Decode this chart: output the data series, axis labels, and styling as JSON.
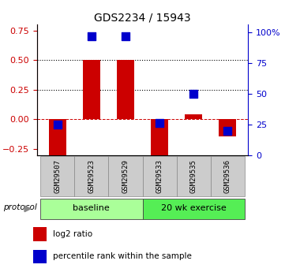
{
  "title": "GDS2234 / 15943",
  "samples": [
    "GSM29507",
    "GSM29523",
    "GSM29529",
    "GSM29533",
    "GSM29535",
    "GSM29536"
  ],
  "log2_ratio": [
    -0.3,
    0.5,
    0.5,
    -0.3,
    0.04,
    -0.14
  ],
  "percentile_rank": [
    25,
    97,
    97,
    26,
    50,
    20
  ],
  "groups": [
    {
      "label": "baseline",
      "start": 0,
      "end": 3,
      "color": "#aaff99"
    },
    {
      "label": "20 wk exercise",
      "start": 3,
      "end": 6,
      "color": "#55ee55"
    }
  ],
  "left_ylim": [
    -0.3,
    0.8
  ],
  "right_ylim": [
    0,
    106.67
  ],
  "left_yticks": [
    -0.25,
    0.0,
    0.25,
    0.5,
    0.75
  ],
  "right_yticks": [
    0,
    25,
    50,
    75,
    100
  ],
  "right_yticklabels": [
    "0",
    "25",
    "50",
    "75",
    "100%"
  ],
  "hlines": [
    0.25,
    0.5
  ],
  "bar_color": "#cc0000",
  "dot_color": "#0000cc",
  "bar_width": 0.5,
  "dot_size": 45,
  "left_tick_color": "#cc0000",
  "right_tick_color": "#0000cc",
  "protocol_label": "protocol",
  "legend_bar_label": "log2 ratio",
  "legend_dot_label": "percentile rank within the sample",
  "sample_box_color": "#cccccc",
  "sample_box_edge": "#888888"
}
